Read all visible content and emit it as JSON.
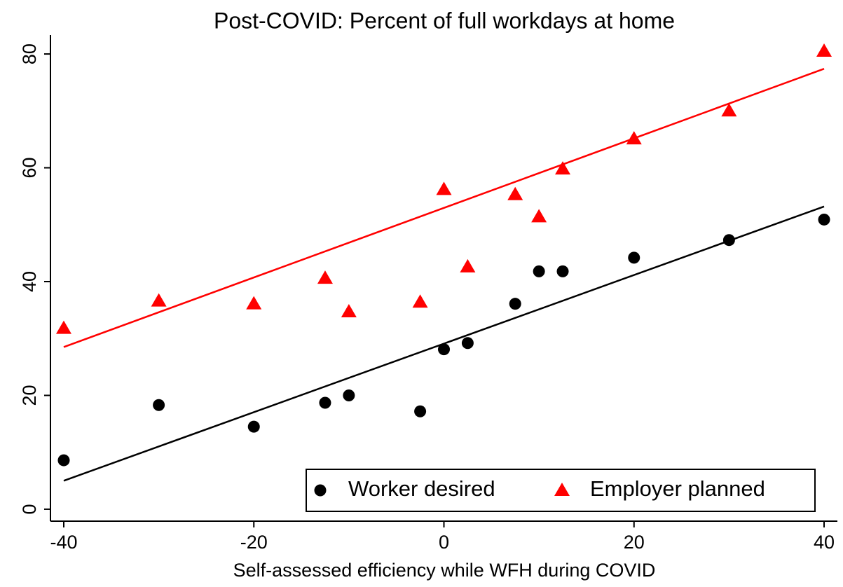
{
  "chart_data": {
    "type": "scatter",
    "title": "Post-COVID: Percent of full workdays at home",
    "x_label": "Self-assessed efficiency while WFH during COVID",
    "x": [
      -40,
      -30,
      -20,
      -12.5,
      -10,
      -2.5,
      0,
      2.5,
      7.5,
      10,
      12.5,
      20,
      30,
      40
    ],
    "series": [
      {
        "name": "Worker desired",
        "color": "#000000",
        "marker": "circle",
        "values": [
          8.6,
          18.3,
          14.5,
          18.7,
          20.0,
          17.2,
          28.1,
          29.2,
          36.1,
          41.8,
          41.8,
          44.2,
          47.3,
          50.9
        ],
        "fit": {
          "x": [
            -40,
            40
          ],
          "values": [
            5.0,
            53.2
          ]
        }
      },
      {
        "name": "Employer planned",
        "color": "#ff0000",
        "marker": "triangle",
        "values": [
          31.8,
          36.6,
          36.1,
          40.6,
          34.7,
          36.4,
          56.2,
          42.6,
          55.3,
          51.4,
          59.8,
          65.1,
          70.0,
          80.5
        ],
        "fit": {
          "x": [
            -40,
            40
          ],
          "values": [
            28.5,
            77.4
          ]
        }
      }
    ],
    "xlim": [
      -41.4,
      41.4
    ],
    "ylim": [
      -2.1,
      82.1
    ],
    "xticks": [
      -40,
      -20,
      0,
      20,
      40
    ],
    "yticks": [
      0,
      20,
      40,
      60,
      80
    ],
    "legend": "lower right"
  }
}
